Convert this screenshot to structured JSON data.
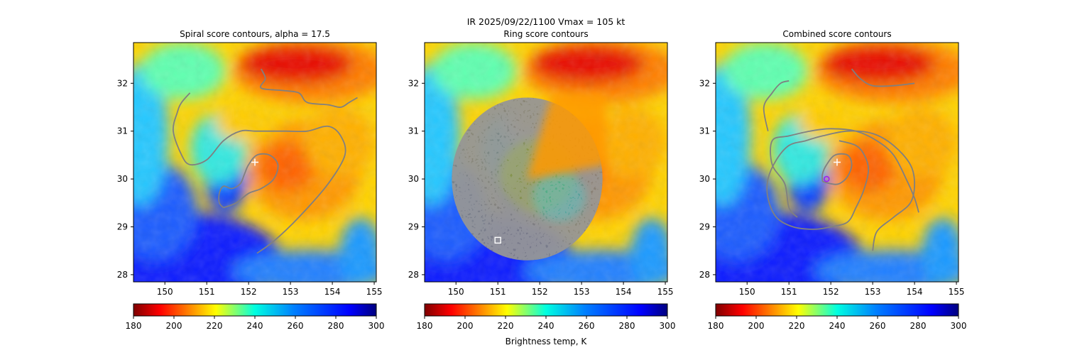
{
  "suptitle": "IR  2025/09/22/1100    Vmax = 105 kt",
  "chart_data": [
    {
      "type": "heatmap",
      "title": "Spiral score contours, alpha = 17.5",
      "x_ticks": [
        150,
        151,
        152,
        153,
        154,
        155
      ],
      "y_ticks": [
        28,
        29,
        30,
        31,
        32
      ],
      "xlim": [
        149.25,
        155.05
      ],
      "ylim": [
        27.85,
        32.85
      ],
      "center_marker": {
        "lon": 152.15,
        "lat": 30.35,
        "symbol": "+"
      },
      "contours": [
        {
          "name": "outer-spiral",
          "points": [
            [
              152.2,
              28.45
            ],
            [
              152.6,
              28.7
            ],
            [
              153.2,
              29.2
            ],
            [
              153.9,
              29.9
            ],
            [
              154.3,
              30.5
            ],
            [
              154.2,
              30.9
            ],
            [
              153.9,
              31.1
            ],
            [
              153.4,
              31.0
            ],
            [
              152.9,
              31.0
            ],
            [
              152.2,
              31.0
            ],
            [
              151.8,
              31.0
            ],
            [
              151.4,
              30.8
            ],
            [
              151.0,
              30.4
            ],
            [
              150.6,
              30.3
            ],
            [
              150.4,
              30.5
            ],
            [
              150.2,
              31.0
            ],
            [
              150.3,
              31.4
            ],
            [
              150.4,
              31.6
            ],
            [
              150.6,
              31.8
            ]
          ]
        },
        {
          "name": "inner-loop",
          "points": [
            [
              151.4,
              29.4
            ],
            [
              151.7,
              29.5
            ],
            [
              152.0,
              29.7
            ],
            [
              152.3,
              29.8
            ],
            [
              152.6,
              30.0
            ],
            [
              152.7,
              30.3
            ],
            [
              152.5,
              30.5
            ],
            [
              152.2,
              30.5
            ],
            [
              152.0,
              30.3
            ],
            [
              151.9,
              30.1
            ],
            [
              151.8,
              29.9
            ],
            [
              151.6,
              29.8
            ],
            [
              151.4,
              29.85
            ],
            [
              151.3,
              29.7
            ],
            [
              151.3,
              29.5
            ],
            [
              151.4,
              29.4
            ]
          ]
        },
        {
          "name": "north-line",
          "points": [
            [
              152.3,
              32.3
            ],
            [
              152.4,
              32.1
            ],
            [
              152.3,
              31.9
            ],
            [
              152.8,
              31.85
            ],
            [
              153.2,
              31.8
            ],
            [
              153.4,
              31.6
            ],
            [
              153.9,
              31.55
            ],
            [
              154.2,
              31.5
            ],
            [
              154.4,
              31.6
            ],
            [
              154.6,
              31.7
            ]
          ]
        }
      ],
      "colorbar": {
        "min": 180,
        "max": 300,
        "ticks": [
          180,
          200,
          220,
          240,
          260,
          280,
          300
        ],
        "colormap": "jet_r",
        "label": ""
      }
    },
    {
      "type": "heatmap",
      "title": "Ring score contours",
      "x_ticks": [
        150,
        151,
        152,
        153,
        154,
        155
      ],
      "y_ticks": [
        28,
        29,
        30,
        31,
        32
      ],
      "xlim": [
        149.25,
        155.05
      ],
      "ylim": [
        27.85,
        32.85
      ],
      "square_marker": {
        "lon": 151.0,
        "lat": 28.72
      },
      "ring_region": {
        "center_lon": 151.7,
        "center_lat": 30.0,
        "extent_lon": [
          149.8,
          153.4
        ],
        "extent_lat": [
          28.3,
          31.7
        ]
      },
      "colorbar": {
        "min": 180,
        "max": 300,
        "ticks": [
          180,
          200,
          220,
          240,
          260,
          280,
          300
        ],
        "colormap": "jet_r",
        "label": "Brightness temp, K"
      }
    },
    {
      "type": "heatmap",
      "title": "Combined score contours",
      "x_ticks": [
        150,
        151,
        152,
        153,
        154,
        155
      ],
      "y_ticks": [
        28,
        29,
        30,
        31,
        32
      ],
      "xlim": [
        149.25,
        155.05
      ],
      "ylim": [
        27.85,
        32.85
      ],
      "center_marker": {
        "lon": 152.15,
        "lat": 30.35,
        "symbol": "+"
      },
      "circle_marker": {
        "lon": 151.9,
        "lat": 30.0
      },
      "contours": [
        {
          "name": "outer-spiral",
          "points": [
            [
              153.0,
              28.5
            ],
            [
              153.1,
              28.9
            ],
            [
              153.5,
              29.2
            ],
            [
              153.9,
              29.5
            ],
            [
              154.0,
              29.9
            ],
            [
              153.9,
              30.3
            ],
            [
              153.5,
              30.7
            ],
            [
              153.0,
              30.95
            ],
            [
              152.4,
              31.0
            ],
            [
              151.8,
              30.9
            ],
            [
              151.4,
              30.8
            ],
            [
              151.0,
              30.7
            ],
            [
              150.7,
              30.4
            ],
            [
              150.5,
              30.0
            ],
            [
              150.5,
              29.6
            ],
            [
              150.7,
              29.2
            ],
            [
              151.1,
              29.0
            ],
            [
              151.6,
              28.95
            ],
            [
              152.0,
              29.0
            ],
            [
              152.4,
              29.1
            ],
            [
              152.6,
              29.4
            ],
            [
              152.8,
              29.8
            ],
            [
              152.9,
              30.2
            ],
            [
              152.8,
              30.5
            ],
            [
              152.6,
              30.7
            ],
            [
              152.2,
              30.8
            ]
          ]
        },
        {
          "name": "outermost-arc",
          "points": [
            [
              151.2,
              29.2
            ],
            [
              151.0,
              29.4
            ],
            [
              150.9,
              29.9
            ],
            [
              150.6,
              30.3
            ],
            [
              150.6,
              30.8
            ],
            [
              151.0,
              30.9
            ],
            [
              151.5,
              31.0
            ],
            [
              152.0,
              31.05
            ],
            [
              152.6,
              31.0
            ],
            [
              153.1,
              30.8
            ],
            [
              153.5,
              30.5
            ],
            [
              153.8,
              30.0
            ],
            [
              154.0,
              29.6
            ],
            [
              154.1,
              29.3
            ]
          ]
        },
        {
          "name": "north-line",
          "points": [
            [
              150.5,
              31.0
            ],
            [
              150.4,
              31.5
            ],
            [
              150.6,
              31.8
            ],
            [
              150.8,
              32.0
            ],
            [
              151.0,
              32.05
            ]
          ]
        },
        {
          "name": "north-east-line",
          "points": [
            [
              152.5,
              32.3
            ],
            [
              152.7,
              32.1
            ],
            [
              153.0,
              31.95
            ],
            [
              153.5,
              31.95
            ],
            [
              154.0,
              32.0
            ]
          ]
        },
        {
          "name": "inner-loop",
          "points": [
            [
              151.8,
              29.95
            ],
            [
              152.0,
              29.9
            ],
            [
              152.2,
              29.9
            ],
            [
              152.4,
              30.05
            ],
            [
              152.5,
              30.3
            ],
            [
              152.4,
              30.5
            ],
            [
              152.1,
              30.5
            ],
            [
              151.9,
              30.3
            ],
            [
              151.8,
              30.1
            ],
            [
              151.8,
              29.95
            ]
          ]
        }
      ],
      "colorbar": {
        "min": 180,
        "max": 300,
        "ticks": [
          180,
          200,
          220,
          240,
          260,
          280,
          300
        ],
        "colormap": "jet_r",
        "label": ""
      }
    }
  ]
}
